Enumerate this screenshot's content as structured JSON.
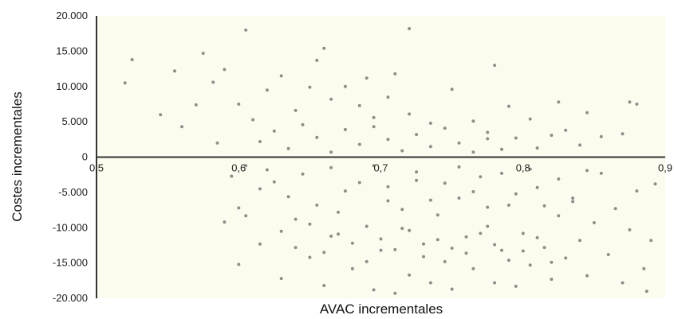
{
  "chart_data": {
    "type": "scatter",
    "title": "",
    "xlabel": "AVAC incrementales",
    "ylabel": "Costes incrementales",
    "xlim": [
      0.5,
      0.9
    ],
    "ylim": [
      -20000,
      20000
    ],
    "grid": false,
    "legend": "none",
    "colors": {
      "background": "#fcfcee",
      "point": "#7a7a7a",
      "axis": "#333333"
    },
    "x_ticks": [
      {
        "value": 0.5,
        "label": "0,5"
      },
      {
        "value": 0.6,
        "label": "0,6"
      },
      {
        "value": 0.7,
        "label": "0,7"
      },
      {
        "value": 0.8,
        "label": "0,8"
      },
      {
        "value": 0.9,
        "label": "0,9"
      }
    ],
    "y_ticks": [
      {
        "value": 20000,
        "label": "20.000"
      },
      {
        "value": 15000,
        "label": "15.000"
      },
      {
        "value": 10000,
        "label": "10.000"
      },
      {
        "value": 5000,
        "label": "5.000"
      },
      {
        "value": 0,
        "label": "0"
      },
      {
        "value": -5000,
        "label": "-5.000"
      },
      {
        "value": -10000,
        "label": "-10.000"
      },
      {
        "value": -15000,
        "label": "-15.000"
      },
      {
        "value": -20000,
        "label": "-20.000"
      }
    ],
    "series": [
      {
        "points": [
          [
            0.52,
            10500
          ],
          [
            0.525,
            13800
          ],
          [
            0.545,
            6000
          ],
          [
            0.555,
            12200
          ],
          [
            0.575,
            14700
          ],
          [
            0.582,
            10600
          ],
          [
            0.59,
            12400
          ],
          [
            0.605,
            18000
          ],
          [
            0.72,
            18200
          ],
          [
            0.655,
            13700
          ],
          [
            0.66,
            15400
          ],
          [
            0.69,
            11200
          ],
          [
            0.71,
            11800
          ],
          [
            0.78,
            13000
          ],
          [
            0.56,
            4300
          ],
          [
            0.57,
            7400
          ],
          [
            0.585,
            2000
          ],
          [
            0.6,
            7500
          ],
          [
            0.61,
            5300
          ],
          [
            0.62,
            9500
          ],
          [
            0.63,
            11500
          ],
          [
            0.64,
            6600
          ],
          [
            0.65,
            9900
          ],
          [
            0.665,
            8200
          ],
          [
            0.675,
            10000
          ],
          [
            0.685,
            7300
          ],
          [
            0.695,
            5600
          ],
          [
            0.705,
            8500
          ],
          [
            0.72,
            6100
          ],
          [
            0.735,
            4800
          ],
          [
            0.75,
            9600
          ],
          [
            0.765,
            5100
          ],
          [
            0.775,
            2600
          ],
          [
            0.79,
            7200
          ],
          [
            0.805,
            5400
          ],
          [
            0.825,
            7800
          ],
          [
            0.83,
            3800
          ],
          [
            0.845,
            6300
          ],
          [
            0.855,
            2900
          ],
          [
            0.875,
            7800
          ],
          [
            0.88,
            7500
          ],
          [
            0.87,
            3300
          ],
          [
            0.595,
            -2700
          ],
          [
            0.6,
            -7200
          ],
          [
            0.59,
            -9200
          ],
          [
            0.6,
            -15200
          ],
          [
            0.605,
            -8300
          ],
          [
            0.615,
            -12300
          ],
          [
            0.625,
            -3500
          ],
          [
            0.63,
            -17200
          ],
          [
            0.64,
            -8800
          ],
          [
            0.65,
            -14200
          ],
          [
            0.66,
            -18200
          ],
          [
            0.665,
            -11200
          ],
          [
            0.675,
            -4800
          ],
          [
            0.68,
            -15800
          ],
          [
            0.69,
            -9800
          ],
          [
            0.695,
            -18800
          ],
          [
            0.7,
            -13200
          ],
          [
            0.705,
            -6200
          ],
          [
            0.71,
            -19300
          ],
          [
            0.715,
            -10100
          ],
          [
            0.72,
            -16700
          ],
          [
            0.725,
            -3300
          ],
          [
            0.73,
            -12300
          ],
          [
            0.735,
            -17800
          ],
          [
            0.74,
            -8200
          ],
          [
            0.745,
            -14800
          ],
          [
            0.75,
            -18700
          ],
          [
            0.755,
            -5800
          ],
          [
            0.76,
            -11300
          ],
          [
            0.765,
            -15800
          ],
          [
            0.77,
            -2800
          ],
          [
            0.775,
            -9800
          ],
          [
            0.78,
            -17800
          ],
          [
            0.785,
            -13200
          ],
          [
            0.79,
            -6800
          ],
          [
            0.795,
            -18300
          ],
          [
            0.8,
            -10800
          ],
          [
            0.805,
            -15300
          ],
          [
            0.81,
            -4300
          ],
          [
            0.815,
            -12800
          ],
          [
            0.82,
            -17300
          ],
          [
            0.825,
            -8300
          ],
          [
            0.83,
            -14300
          ],
          [
            0.835,
            -6300
          ],
          [
            0.84,
            -11800
          ],
          [
            0.845,
            -16800
          ],
          [
            0.85,
            -9300
          ],
          [
            0.855,
            -2300
          ],
          [
            0.86,
            -13800
          ],
          [
            0.865,
            -7300
          ],
          [
            0.87,
            -17800
          ],
          [
            0.875,
            -10300
          ],
          [
            0.88,
            -4800
          ],
          [
            0.885,
            -15800
          ],
          [
            0.89,
            -11800
          ],
          [
            0.893,
            -3800
          ],
          [
            0.887,
            -19000
          ],
          [
            0.605,
            -1200
          ],
          [
            0.615,
            -4500
          ],
          [
            0.62,
            -1800
          ],
          [
            0.635,
            -5600
          ],
          [
            0.645,
            -2400
          ],
          [
            0.655,
            -6800
          ],
          [
            0.665,
            -1500
          ],
          [
            0.67,
            -7800
          ],
          [
            0.685,
            -3600
          ],
          [
            0.695,
            -1200
          ],
          [
            0.705,
            -4200
          ],
          [
            0.715,
            -7400
          ],
          [
            0.725,
            -2100
          ],
          [
            0.735,
            -6100
          ],
          [
            0.745,
            -3700
          ],
          [
            0.755,
            -1400
          ],
          [
            0.765,
            -4900
          ],
          [
            0.775,
            -7100
          ],
          [
            0.785,
            -2300
          ],
          [
            0.795,
            -5200
          ],
          [
            0.805,
            -1700
          ],
          [
            0.815,
            -6900
          ],
          [
            0.825,
            -3100
          ],
          [
            0.835,
            -5800
          ],
          [
            0.845,
            -1900
          ],
          [
            0.615,
            2200
          ],
          [
            0.625,
            3700
          ],
          [
            0.635,
            1200
          ],
          [
            0.645,
            4600
          ],
          [
            0.655,
            2800
          ],
          [
            0.665,
            700
          ],
          [
            0.675,
            3900
          ],
          [
            0.685,
            1800
          ],
          [
            0.695,
            4300
          ],
          [
            0.705,
            2500
          ],
          [
            0.715,
            900
          ],
          [
            0.725,
            3200
          ],
          [
            0.735,
            1500
          ],
          [
            0.745,
            4100
          ],
          [
            0.755,
            2000
          ],
          [
            0.765,
            700
          ],
          [
            0.775,
            3500
          ],
          [
            0.785,
            1100
          ],
          [
            0.795,
            2700
          ],
          [
            0.81,
            1300
          ],
          [
            0.82,
            3100
          ],
          [
            0.84,
            1700
          ],
          [
            0.63,
            -10500
          ],
          [
            0.64,
            -12800
          ],
          [
            0.65,
            -9500
          ],
          [
            0.66,
            -13500
          ],
          [
            0.67,
            -10900
          ],
          [
            0.68,
            -12200
          ],
          [
            0.69,
            -14800
          ],
          [
            0.7,
            -11600
          ],
          [
            0.71,
            -13100
          ],
          [
            0.72,
            -10400
          ],
          [
            0.73,
            -14100
          ],
          [
            0.74,
            -11700
          ],
          [
            0.75,
            -12900
          ],
          [
            0.76,
            -13600
          ],
          [
            0.77,
            -10800
          ],
          [
            0.78,
            -12400
          ],
          [
            0.79,
            -14600
          ],
          [
            0.8,
            -13300
          ],
          [
            0.81,
            -11400
          ],
          [
            0.82,
            -14900
          ]
        ]
      }
    ]
  }
}
